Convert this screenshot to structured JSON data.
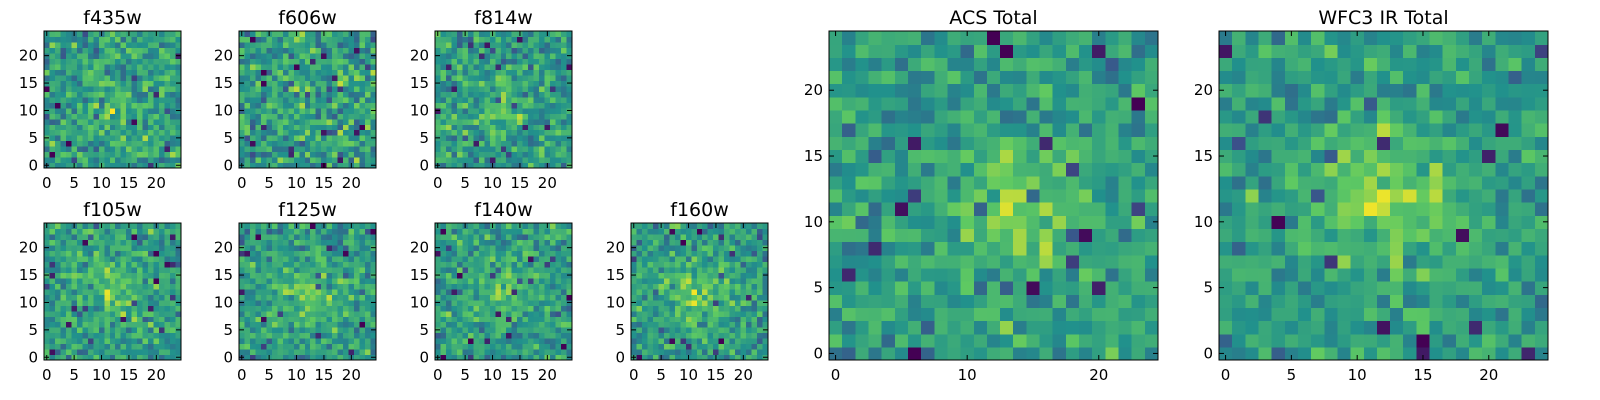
{
  "figure": {
    "colormap": "viridis",
    "colormap_stops": [
      "#440154",
      "#3b528b",
      "#21918c",
      "#5ec962",
      "#fde725"
    ],
    "frame_color": "#000000",
    "background": "#ffffff"
  },
  "chart_data": [
    {
      "type": "heatmap",
      "title": "f435w",
      "grid_size": [
        25,
        25
      ],
      "xlim": [
        -0.5,
        24.5
      ],
      "ylim": [
        -0.5,
        24.5
      ],
      "xticks": [
        0,
        5,
        10,
        15,
        20
      ],
      "yticks": [
        0,
        5,
        10,
        15,
        20
      ],
      "value_range": [
        0,
        1
      ],
      "noise_level": 0.36,
      "source_amplitude": 0.12,
      "source_center": [
        12,
        11
      ],
      "source_sigma": 3.5,
      "seed": 11
    },
    {
      "type": "heatmap",
      "title": "f606w",
      "grid_size": [
        25,
        25
      ],
      "xlim": [
        -0.5,
        24.5
      ],
      "ylim": [
        -0.5,
        24.5
      ],
      "xticks": [
        0,
        5,
        10,
        15,
        20
      ],
      "yticks": [
        0,
        5,
        10,
        15,
        20
      ],
      "value_range": [
        0,
        1
      ],
      "noise_level": 0.4,
      "source_amplitude": 0.06,
      "source_center": [
        12,
        11
      ],
      "source_sigma": 3.5,
      "seed": 23
    },
    {
      "type": "heatmap",
      "title": "f814w",
      "grid_size": [
        25,
        25
      ],
      "xlim": [
        -0.5,
        24.5
      ],
      "ylim": [
        -0.5,
        24.5
      ],
      "xticks": [
        0,
        5,
        10,
        15,
        20
      ],
      "yticks": [
        0,
        5,
        10,
        15,
        20
      ],
      "value_range": [
        0,
        1
      ],
      "noise_level": 0.34,
      "source_amplitude": 0.14,
      "source_center": [
        12,
        11
      ],
      "source_sigma": 3.5,
      "seed": 37
    },
    {
      "type": "heatmap",
      "title": "f105w",
      "grid_size": [
        25,
        25
      ],
      "xlim": [
        -0.5,
        24.5
      ],
      "ylim": [
        -0.5,
        24.5
      ],
      "xticks": [
        0,
        5,
        10,
        15,
        20
      ],
      "yticks": [
        0,
        5,
        10,
        15,
        20
      ],
      "value_range": [
        0,
        1
      ],
      "noise_level": 0.32,
      "source_amplitude": 0.16,
      "source_center": [
        12,
        12
      ],
      "source_sigma": 4,
      "seed": 41
    },
    {
      "type": "heatmap",
      "title": "f125w",
      "grid_size": [
        25,
        25
      ],
      "xlim": [
        -0.5,
        24.5
      ],
      "ylim": [
        -0.5,
        24.5
      ],
      "xticks": [
        0,
        5,
        10,
        15,
        20
      ],
      "yticks": [
        0,
        5,
        10,
        15,
        20
      ],
      "value_range": [
        0,
        1
      ],
      "noise_level": 0.32,
      "source_amplitude": 0.18,
      "source_center": [
        11,
        11
      ],
      "source_sigma": 4,
      "seed": 53
    },
    {
      "type": "heatmap",
      "title": "f140w",
      "grid_size": [
        25,
        25
      ],
      "xlim": [
        -0.5,
        24.5
      ],
      "ylim": [
        -0.5,
        24.5
      ],
      "xticks": [
        0,
        5,
        10,
        15,
        20
      ],
      "yticks": [
        0,
        5,
        10,
        15,
        20
      ],
      "value_range": [
        0,
        1
      ],
      "noise_level": 0.32,
      "source_amplitude": 0.18,
      "source_center": [
        12,
        12
      ],
      "source_sigma": 4,
      "seed": 67
    },
    {
      "type": "heatmap",
      "title": "f160w",
      "grid_size": [
        25,
        25
      ],
      "xlim": [
        -0.5,
        24.5
      ],
      "ylim": [
        -0.5,
        24.5
      ],
      "xticks": [
        0,
        5,
        10,
        15,
        20
      ],
      "yticks": [
        0,
        5,
        10,
        15,
        20
      ],
      "value_range": [
        0,
        1
      ],
      "noise_level": 0.32,
      "source_amplitude": 0.18,
      "source_center": [
        12,
        12
      ],
      "source_sigma": 4,
      "seed": 79
    },
    {
      "type": "heatmap",
      "title": "ACS Total",
      "grid_size": [
        25,
        25
      ],
      "xlim": [
        -0.5,
        24.5
      ],
      "ylim": [
        -0.5,
        24.5
      ],
      "xticks": [
        0,
        10,
        20
      ],
      "yticks": [
        0,
        5,
        10,
        15,
        20
      ],
      "value_range": [
        0,
        1
      ],
      "noise_level": 0.3,
      "source_amplitude": 0.26,
      "source_center": [
        14,
        11
      ],
      "source_sigma": 3,
      "seed": 97
    },
    {
      "type": "heatmap",
      "title": "WFC3 IR Total",
      "grid_size": [
        25,
        25
      ],
      "xlim": [
        -0.5,
        24.5
      ],
      "ylim": [
        -0.5,
        24.5
      ],
      "xticks": [
        0,
        5,
        10,
        15,
        20
      ],
      "yticks": [
        0,
        5,
        10,
        15,
        20
      ],
      "value_range": [
        0,
        1
      ],
      "noise_level": 0.28,
      "source_amplitude": 0.28,
      "source_center": [
        12,
        12
      ],
      "source_sigma": 3.5,
      "seed": 113
    }
  ]
}
